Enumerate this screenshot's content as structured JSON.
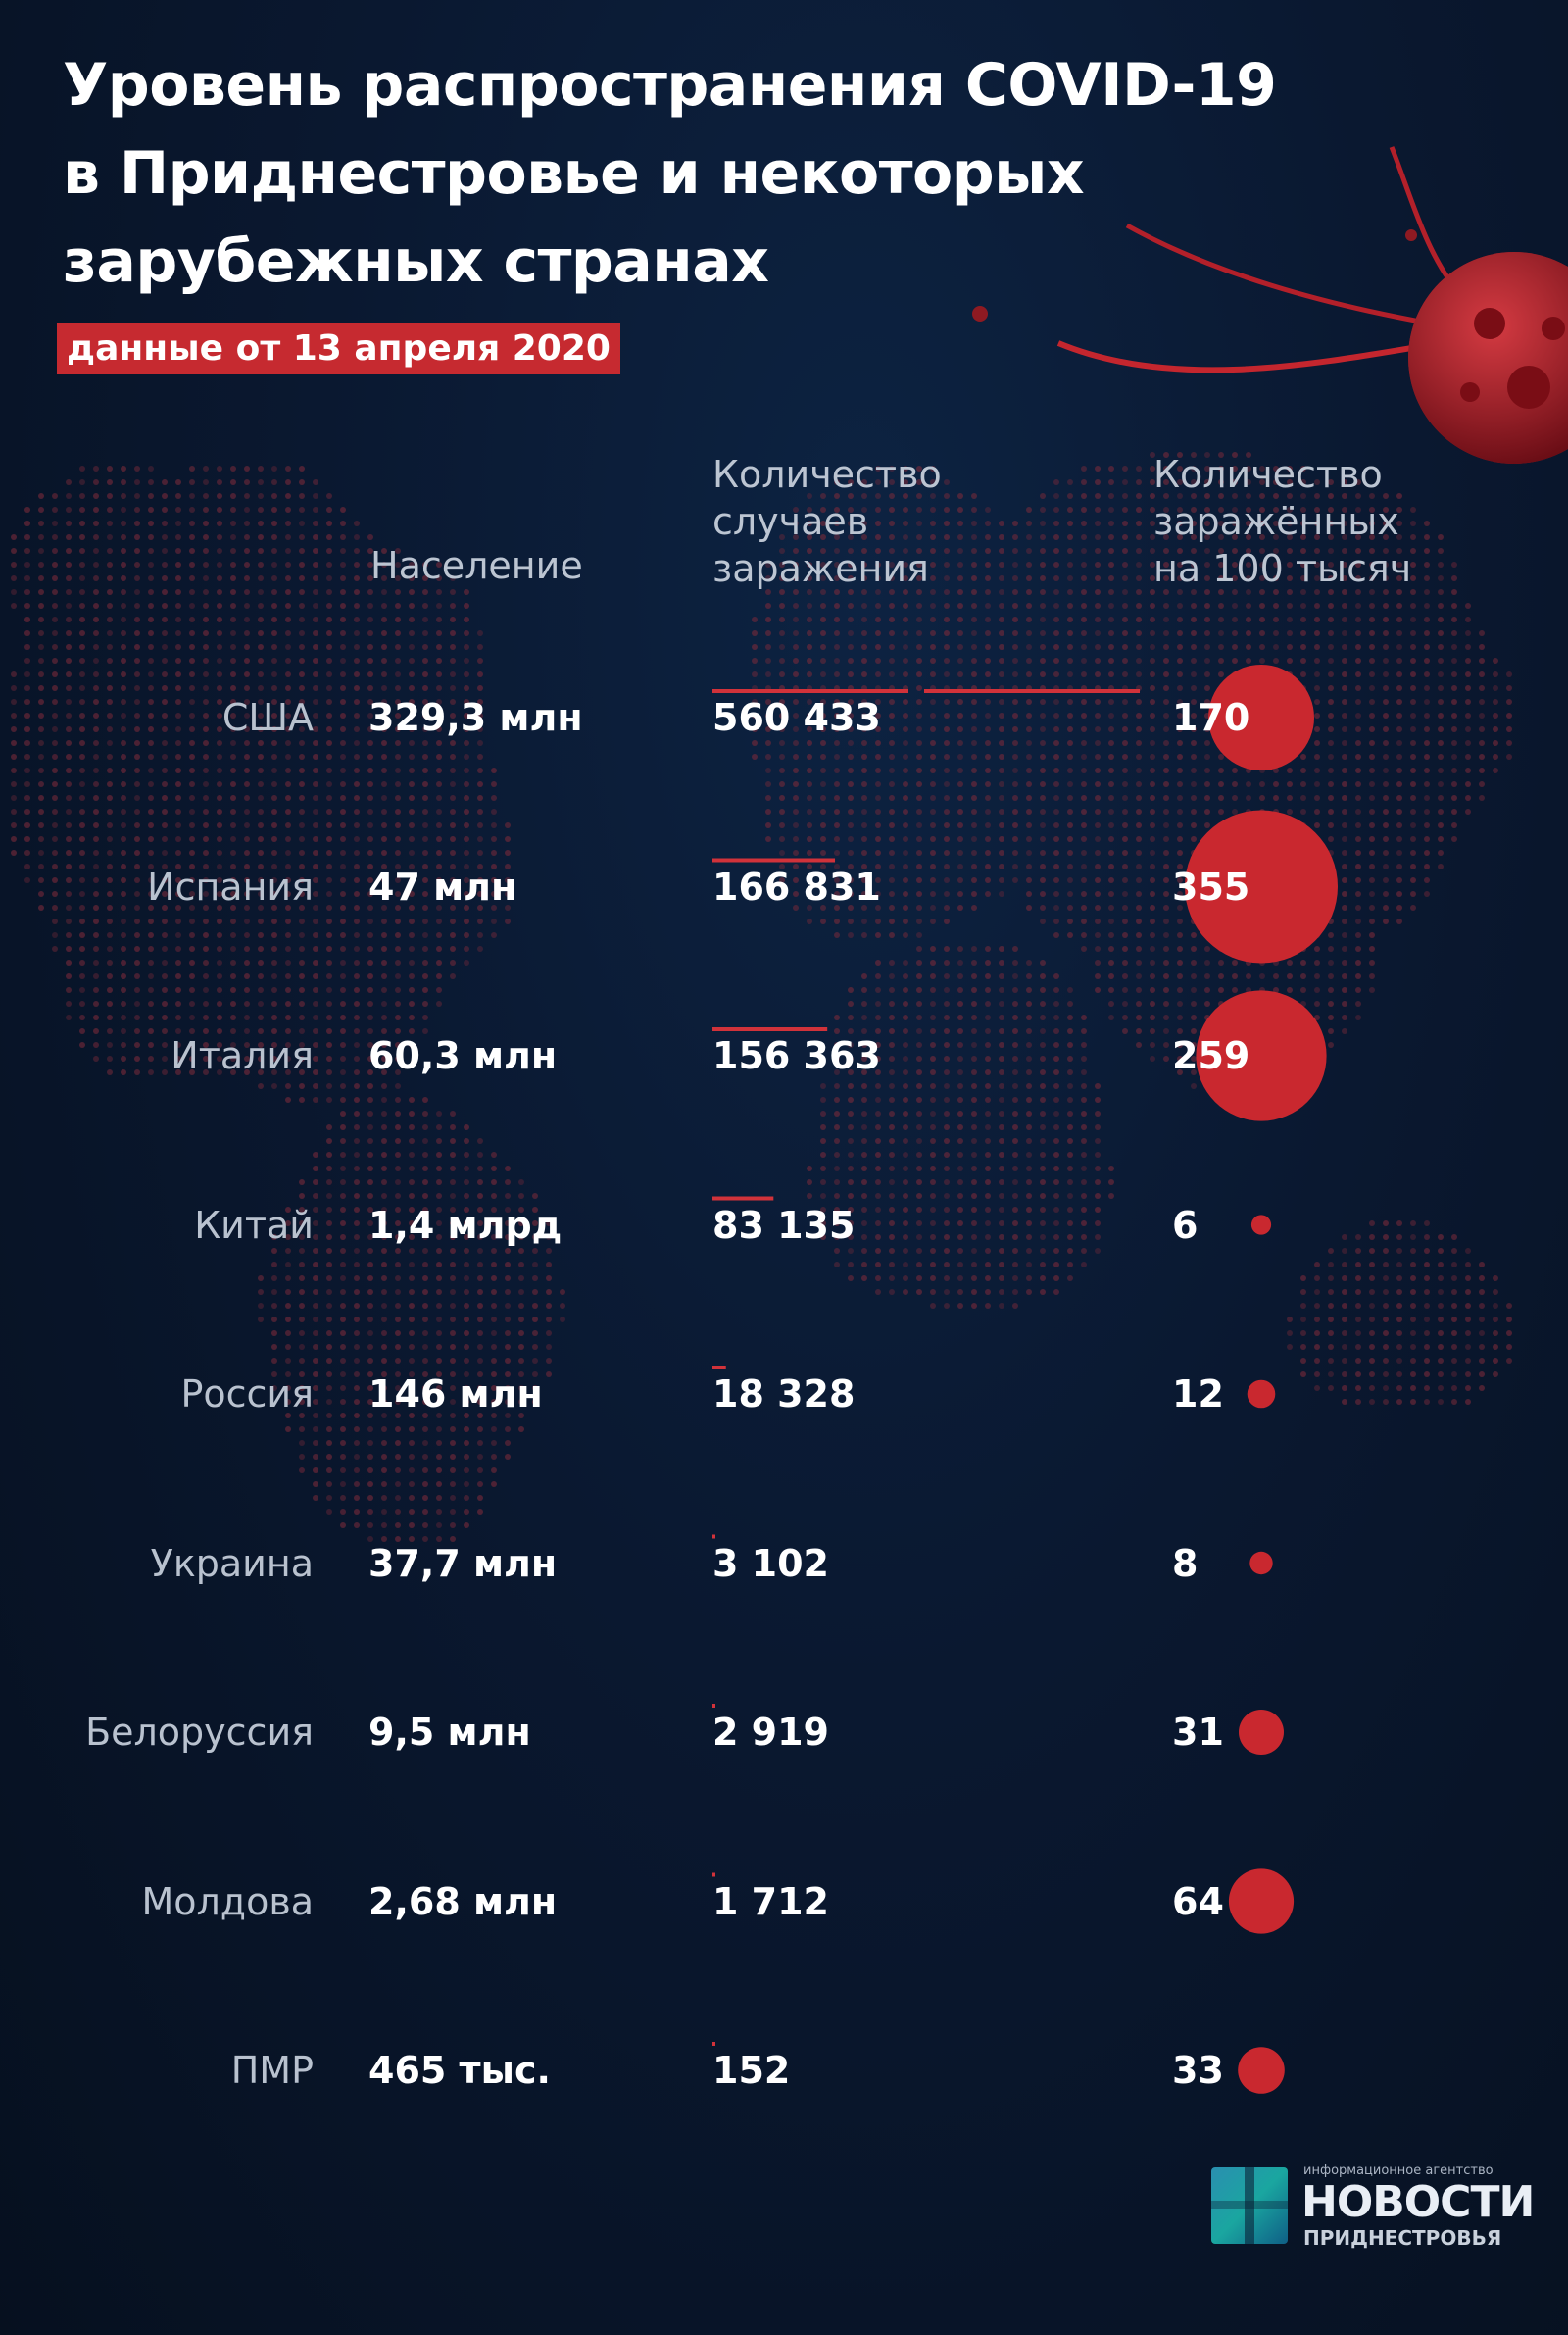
{
  "title_lines": [
    "Уровень распространения COVID-19",
    "в Приднестровье и некоторых",
    "зарубежных странах"
  ],
  "date_badge": "данные от 13  апреля 2020",
  "headers": {
    "population": "Население",
    "cases": [
      "Количество",
      "случаев",
      "заражения"
    ],
    "per100k": [
      "Количество",
      "заражённых",
      "на 100 тысяч"
    ]
  },
  "colors": {
    "accent": "#c62a30",
    "bar": "#d1323a",
    "bubble": "#c9282f",
    "map_dot": "#7a2a3a"
  },
  "chart_data": {
    "type": "table",
    "columns": [
      "Население",
      "Количество случаев заражения",
      "Количество заражённых на 100 тысяч"
    ],
    "rows": [
      {
        "country": "США",
        "population": "329,3 млн",
        "cases_label": "560 433",
        "cases": 560433,
        "per100k": 170
      },
      {
        "country": "Испания",
        "population": "47 млн",
        "cases_label": "166 831",
        "cases": 166831,
        "per100k": 355
      },
      {
        "country": "Италия",
        "population": "60,3 млн",
        "cases_label": "156 363",
        "cases": 156363,
        "per100k": 259
      },
      {
        "country": "Китай",
        "population": "1,4 млрд",
        "cases_label": "83 135",
        "cases": 83135,
        "per100k": 6
      },
      {
        "country": "Россия",
        "population": "146 млн",
        "cases_label": "18 328",
        "cases": 18328,
        "per100k": 12
      },
      {
        "country": "Украина",
        "population": "37,7 млн",
        "cases_label": "3 102",
        "cases": 3102,
        "per100k": 8
      },
      {
        "country": "Белоруссия",
        "population": "9,5 млн",
        "cases_label": "2 919",
        "cases": 2919,
        "per100k": 31
      },
      {
        "country": "Молдова",
        "population": "2,68 млн",
        "cases_label": "1 712",
        "cases": 1712,
        "per100k": 64
      },
      {
        "country": "ПМР",
        "population": "465 тыс.",
        "cases_label": "152",
        "cases": 152,
        "per100k": 33
      }
    ]
  },
  "logo": {
    "tagline": "информационное агентство",
    "name": "НОВОСТИ",
    "sub": "ПРИДНЕСТРОВЬЯ"
  }
}
